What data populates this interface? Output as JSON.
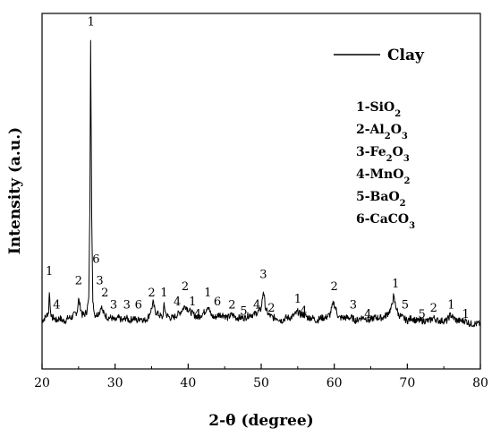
{
  "chart_data": {
    "type": "line",
    "title": "",
    "xlabel": "2-θ (degree)",
    "ylabel": "Intensity (a.u.)",
    "xlim": [
      20,
      80
    ],
    "ylim": [
      0,
      100
    ],
    "y_ticks_shown": false,
    "grid": false,
    "legend_position": "top-right",
    "x_ticks": [
      20,
      30,
      40,
      50,
      60,
      70,
      80
    ],
    "series": [
      {
        "name": "Clay",
        "color": "#000000",
        "x": [
          20.0,
          20.4,
          20.7,
          20.9,
          21.0,
          21.1,
          21.3,
          21.6,
          22.0,
          22.4,
          22.8,
          23.2,
          23.6,
          24.0,
          24.4,
          24.8,
          25.0,
          25.2,
          25.5,
          25.8,
          26.1,
          26.4,
          26.55,
          26.65,
          26.8,
          26.95,
          27.2,
          27.5,
          27.9,
          28.1,
          28.3,
          28.6,
          29.0,
          29.5,
          30.0,
          30.5,
          31.0,
          31.5,
          32.0,
          32.5,
          33.0,
          33.5,
          34.0,
          34.5,
          35.0,
          35.2,
          35.5,
          36.0,
          36.5,
          36.7,
          37.0,
          37.5,
          38.0,
          38.5,
          39.0,
          39.3,
          39.6,
          39.9,
          40.3,
          40.8,
          41.3,
          41.8,
          42.3,
          42.7,
          43.1,
          43.6,
          44.2,
          44.8,
          45.4,
          46.0,
          46.6,
          47.2,
          47.8,
          48.4,
          49.0,
          49.6,
          50.0,
          50.3,
          50.6,
          51.0,
          51.6,
          52.2,
          52.8,
          53.4,
          54.0,
          54.6,
          55.0,
          55.4,
          55.8,
          56.4,
          57.0,
          57.6,
          58.2,
          58.8,
          59.4,
          59.9,
          60.2,
          60.6,
          61.2,
          61.8,
          62.4,
          63.0,
          63.6,
          64.2,
          64.8,
          65.4,
          66.0,
          66.6,
          67.2,
          67.8,
          68.1,
          68.4,
          68.8,
          69.4,
          70.0,
          70.6,
          71.2,
          71.8,
          72.4,
          73.0,
          73.6,
          74.2,
          74.8,
          75.4,
          75.9,
          76.3,
          76.8,
          77.4,
          78.0,
          78.6,
          79.2,
          80.0
        ],
        "values": [
          7,
          8,
          9,
          10,
          17,
          12,
          8,
          8,
          7,
          8,
          7,
          7,
          8,
          8,
          9,
          10,
          14,
          12,
          9,
          9,
          10,
          14,
          45,
          100,
          40,
          14,
          9,
          9,
          10,
          12,
          10,
          9,
          8,
          8,
          7,
          8,
          7,
          8,
          7,
          8,
          7,
          8,
          7,
          8,
          11,
          13,
          10,
          9,
          8,
          12,
          9,
          8,
          8,
          9,
          10,
          11,
          12,
          11,
          10,
          9,
          8,
          9,
          10,
          12,
          9,
          8,
          9,
          9,
          8,
          9,
          8,
          8,
          8,
          9,
          9,
          10,
          11,
          17,
          11,
          9,
          8,
          8,
          7,
          8,
          8,
          9,
          10,
          9,
          9,
          8,
          8,
          7,
          8,
          8,
          9,
          13,
          11,
          8,
          8,
          8,
          8,
          7,
          8,
          8,
          7,
          8,
          8,
          8,
          9,
          11,
          15,
          12,
          9,
          8,
          7,
          8,
          7,
          7,
          7,
          7,
          8,
          7,
          7,
          7,
          9,
          8,
          7,
          7,
          7,
          6,
          6,
          6
        ]
      }
    ],
    "annotations": [
      {
        "x": 21.0,
        "text": "1",
        "y": 22
      },
      {
        "x": 22.0,
        "text": "4",
        "y": 11
      },
      {
        "x": 25.0,
        "text": "2",
        "y": 19
      },
      {
        "x": 26.7,
        "text": "1",
        "y": 104
      },
      {
        "x": 27.4,
        "text": "6",
        "y": 26
      },
      {
        "x": 27.9,
        "text": "3",
        "y": 19
      },
      {
        "x": 28.6,
        "text": "2",
        "y": 15
      },
      {
        "x": 29.8,
        "text": "3",
        "y": 11
      },
      {
        "x": 31.6,
        "text": "3",
        "y": 11
      },
      {
        "x": 33.2,
        "text": "6",
        "y": 11
      },
      {
        "x": 35.0,
        "text": "2",
        "y": 15
      },
      {
        "x": 36.7,
        "text": "1",
        "y": 15
      },
      {
        "x": 38.5,
        "text": "4",
        "y": 12
      },
      {
        "x": 39.6,
        "text": "2",
        "y": 17
      },
      {
        "x": 40.6,
        "text": "1",
        "y": 12
      },
      {
        "x": 41.3,
        "text": "4",
        "y": 8
      },
      {
        "x": 42.7,
        "text": "1",
        "y": 15
      },
      {
        "x": 44.0,
        "text": "6",
        "y": 12
      },
      {
        "x": 46.0,
        "text": "2",
        "y": 11
      },
      {
        "x": 47.6,
        "text": "5",
        "y": 9
      },
      {
        "x": 49.4,
        "text": "4",
        "y": 11
      },
      {
        "x": 50.3,
        "text": "3",
        "y": 21
      },
      {
        "x": 51.4,
        "text": "2",
        "y": 10
      },
      {
        "x": 55.0,
        "text": "1",
        "y": 13
      },
      {
        "x": 55.8,
        "text": "4",
        "y": 9
      },
      {
        "x": 60.0,
        "text": "2",
        "y": 17
      },
      {
        "x": 62.6,
        "text": "3",
        "y": 11
      },
      {
        "x": 64.6,
        "text": "4",
        "y": 8
      },
      {
        "x": 68.4,
        "text": "1",
        "y": 18
      },
      {
        "x": 69.7,
        "text": "5",
        "y": 11
      },
      {
        "x": 72.0,
        "text": "5",
        "y": 8
      },
      {
        "x": 73.6,
        "text": "2",
        "y": 10
      },
      {
        "x": 76.0,
        "text": "1",
        "y": 11
      },
      {
        "x": 78.0,
        "text": "1",
        "y": 8
      }
    ]
  },
  "legend": {
    "series_label": "Clay"
  },
  "components": [
    {
      "num": "1-SiO",
      "sub": "2",
      "rest": ""
    },
    {
      "num": "2-Al",
      "sub": "2",
      "mid": "O",
      "sub2": "3"
    },
    {
      "num": "3-Fe",
      "sub": "2",
      "mid": "O",
      "sub2": "3"
    },
    {
      "num": "4-MnO",
      "sub": "2",
      "rest": ""
    },
    {
      "num": "5-BaO",
      "sub": "2",
      "rest": ""
    },
    {
      "num": "6-CaCO",
      "sub": "3",
      "rest": ""
    }
  ]
}
